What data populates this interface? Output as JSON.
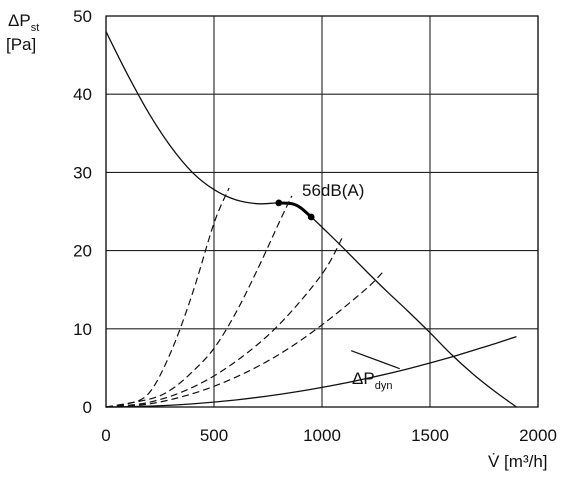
{
  "chart_data": {
    "type": "line",
    "ylabel_main": "ΔP",
    "ylabel_sub": "st",
    "ylabel_unit": "[Pa]",
    "xlabel": "V̇ [m³/h]",
    "xlim": [
      0,
      2000
    ],
    "ylim": [
      0,
      50
    ],
    "xticks": [
      0,
      500,
      1000,
      1500,
      2000
    ],
    "yticks": [
      0,
      10,
      20,
      30,
      40,
      50
    ],
    "grid": true,
    "series": [
      {
        "role": "fan-curve",
        "points": [
          [
            0,
            48
          ],
          [
            100,
            42.5
          ],
          [
            200,
            37.5
          ],
          [
            300,
            33.3
          ],
          [
            400,
            30
          ],
          [
            500,
            27.8
          ],
          [
            600,
            26.5
          ],
          [
            700,
            26
          ],
          [
            800,
            26.1
          ],
          [
            860,
            26
          ],
          [
            900,
            25.5
          ],
          [
            950,
            24.3
          ],
          [
            1000,
            23
          ],
          [
            1100,
            20.3
          ],
          [
            1200,
            17.5
          ],
          [
            1300,
            14.8
          ],
          [
            1400,
            12.2
          ],
          [
            1500,
            9.5
          ],
          [
            1600,
            6.7
          ],
          [
            1700,
            4.2
          ],
          [
            1800,
            2
          ],
          [
            1900,
            0
          ]
        ]
      },
      {
        "name": "56dB(A)",
        "role": "noise-segment",
        "points": [
          [
            800,
            26.1
          ],
          [
            860,
            26
          ],
          [
            900,
            25.5
          ],
          [
            950,
            24.3
          ]
        ],
        "markers": [
          [
            800,
            26.1
          ],
          [
            950,
            24.3
          ]
        ]
      },
      {
        "name": "ΔP",
        "name_sub": "dyn",
        "role": "dynamic-pressure",
        "points": [
          [
            0,
            0
          ],
          [
            200,
            0.1
          ],
          [
            400,
            0.4
          ],
          [
            600,
            0.9
          ],
          [
            800,
            1.6
          ],
          [
            1000,
            2.5
          ],
          [
            1200,
            3.6
          ],
          [
            1400,
            4.9
          ],
          [
            1600,
            6.4
          ],
          [
            1800,
            8.1
          ],
          [
            1900,
            9
          ]
        ]
      },
      {
        "role": "system-curve",
        "points": [
          [
            0,
            0
          ],
          [
            100,
            0.4
          ],
          [
            200,
            1.8
          ],
          [
            300,
            7
          ],
          [
            400,
            14.5
          ],
          [
            500,
            23.5
          ],
          [
            570,
            28
          ]
        ]
      },
      {
        "role": "system-curve",
        "points": [
          [
            0,
            0
          ],
          [
            200,
            1
          ],
          [
            300,
            2.2
          ],
          [
            400,
            4.5
          ],
          [
            500,
            7.5
          ],
          [
            600,
            12
          ],
          [
            700,
            17.5
          ],
          [
            800,
            23.5
          ],
          [
            860,
            27
          ]
        ]
      },
      {
        "role": "system-curve",
        "points": [
          [
            0,
            0
          ],
          [
            200,
            0.6
          ],
          [
            400,
            2.5
          ],
          [
            600,
            5.8
          ],
          [
            800,
            10.5
          ],
          [
            1000,
            17
          ],
          [
            1100,
            22
          ]
        ]
      },
      {
        "role": "system-curve",
        "points": [
          [
            0,
            0
          ],
          [
            200,
            0.4
          ],
          [
            400,
            1.7
          ],
          [
            600,
            3.8
          ],
          [
            800,
            6.7
          ],
          [
            1000,
            10.5
          ],
          [
            1200,
            15
          ],
          [
            1280,
            17.2
          ]
        ]
      }
    ]
  }
}
